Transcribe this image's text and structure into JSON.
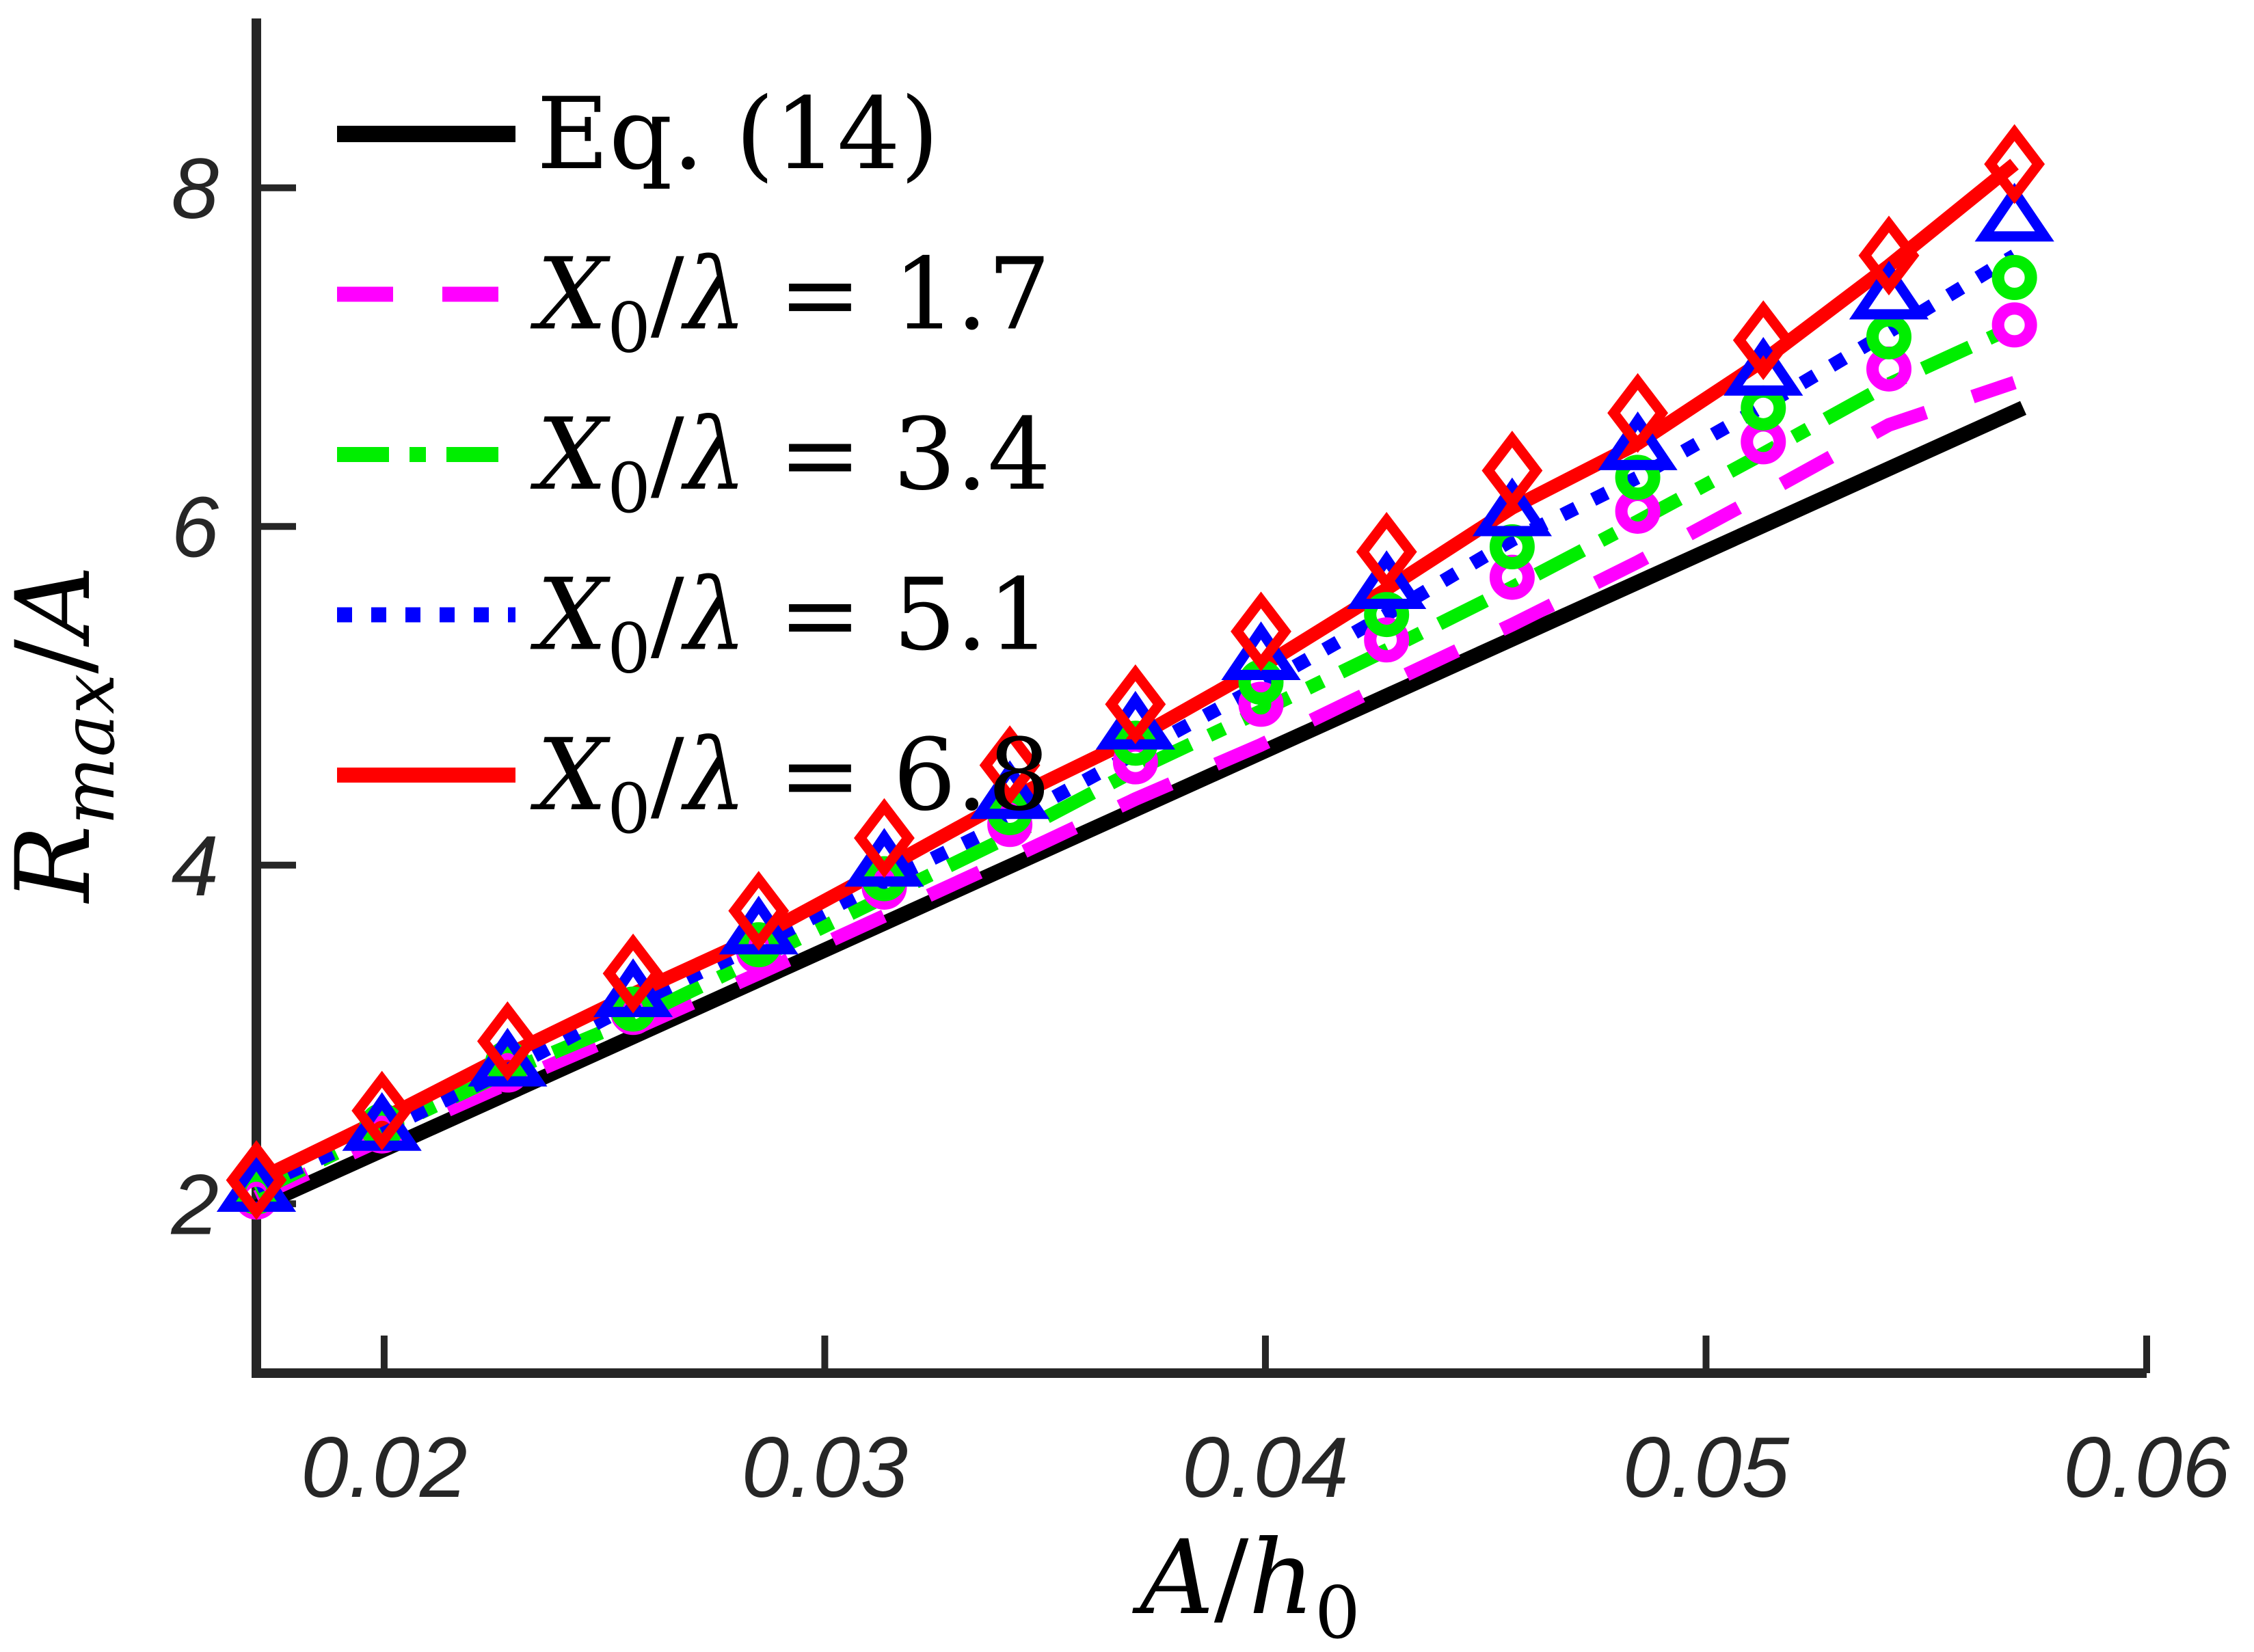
{
  "chart_data": {
    "type": "line",
    "title": "",
    "xlabel_parts": [
      {
        "t": "A",
        "i": 1
      },
      {
        "t": "/",
        "i": 0
      },
      {
        "t": "h",
        "i": 1
      },
      {
        "t": "0",
        "i": 0,
        "sub": 1
      }
    ],
    "ylabel_parts": [
      {
        "t": "R",
        "i": 1
      },
      {
        "t": "max",
        "i": 1,
        "sub": 1
      },
      {
        "t": "/",
        "i": 0
      },
      {
        "t": "A",
        "i": 1
      }
    ],
    "xlim": [
      0.0171,
      0.06
    ],
    "ylim": [
      1,
      9
    ],
    "xticks": [
      0.02,
      0.03,
      0.04,
      0.05,
      0.06
    ],
    "xtick_labels": [
      "0.02",
      "0.03",
      "0.04",
      "0.05",
      "0.06"
    ],
    "yticks": [
      2,
      4,
      6,
      8
    ],
    "ytick_labels": [
      "2",
      "4",
      "6",
      "8"
    ],
    "grid": false,
    "legend_position": "top-left",
    "x": [
      0.0171,
      0.01995,
      0.0228,
      0.02565,
      0.0285,
      0.03135,
      0.0342,
      0.03705,
      0.0399,
      0.04275,
      0.0456,
      0.04845,
      0.0513,
      0.05415,
      0.057
    ],
    "series": [
      {
        "id": "eq14",
        "label_parts": [
          {
            "t": "Eq. (14)",
            "i": 0
          }
        ],
        "label_text": "Eq. (14)",
        "color": "#000000",
        "linestyle": "solid",
        "linewidth": 22,
        "marker": "none",
        "line_x": [
          0.0171,
          0.0572
        ],
        "line_y": [
          1.98,
          6.7
        ]
      },
      {
        "id": "x0l17",
        "label_parts": [
          {
            "t": "X",
            "i": 1
          },
          {
            "t": "0",
            "i": 0,
            "sub": 1
          },
          {
            "t": "/",
            "i": 0
          },
          {
            "t": "λ",
            "i": 1
          },
          {
            "t": " = 1.7",
            "i": 0
          }
        ],
        "label_text": "X0/λ = 1.7",
        "color": "#ff00ff",
        "linestyle": "dashed",
        "linewidth": 20,
        "marker": "circle",
        "line_y": [
          2.04,
          2.38,
          2.71,
          3.03,
          3.36,
          3.7,
          4.04,
          4.39,
          4.71,
          5.07,
          5.42,
          5.79,
          6.19,
          6.6,
          6.85
        ],
        "marker_y": [
          2.04,
          2.43,
          2.79,
          3.13,
          3.49,
          3.87,
          4.24,
          4.61,
          4.95,
          5.33,
          5.7,
          6.09,
          6.5,
          6.93,
          7.19
        ]
      },
      {
        "id": "x0l34",
        "label_parts": [
          {
            "t": "X",
            "i": 1
          },
          {
            "t": "0",
            "i": 0,
            "sub": 1
          },
          {
            "t": "/",
            "i": 0
          },
          {
            "t": "λ",
            "i": 1
          },
          {
            "t": " = 3.4",
            "i": 0
          }
        ],
        "label_text": "X0/λ = 3.4",
        "color": "#00ee00",
        "linestyle": "dashdot",
        "linewidth": 20,
        "marker": "circle",
        "line_y": [
          2.07,
          2.43,
          2.78,
          3.09,
          3.45,
          3.81,
          4.17,
          4.56,
          4.91,
          5.27,
          5.64,
          6.03,
          6.43,
          6.84,
          7.18
        ],
        "marker_y": [
          2.07,
          2.46,
          2.83,
          3.15,
          3.53,
          3.92,
          4.31,
          4.72,
          5.08,
          5.48,
          5.88,
          6.29,
          6.7,
          7.12,
          7.47
        ]
      },
      {
        "id": "x0l51",
        "label_parts": [
          {
            "t": "X",
            "i": 1
          },
          {
            "t": "0",
            "i": 0,
            "sub": 1
          },
          {
            "t": "/",
            "i": 0
          },
          {
            "t": "λ",
            "i": 1
          },
          {
            "t": " = 5.1",
            "i": 0
          }
        ],
        "label_text": "X0/λ = 5.1",
        "color": "#0000ff",
        "linestyle": "dotted",
        "linewidth": 20,
        "marker": "triangle",
        "line_y": [
          2.1,
          2.43,
          2.79,
          3.18,
          3.53,
          3.9,
          4.26,
          4.66,
          5.06,
          5.48,
          5.92,
          6.29,
          6.71,
          7.15,
          7.6
        ],
        "marker_y": [
          2.1,
          2.46,
          2.84,
          3.25,
          3.62,
          4.02,
          4.42,
          4.83,
          5.24,
          5.66,
          6.09,
          6.48,
          6.92,
          7.37,
          7.83
        ]
      },
      {
        "id": "x0l68",
        "label_parts": [
          {
            "t": "X",
            "i": 1
          },
          {
            "t": "0",
            "i": 0,
            "sub": 1
          },
          {
            "t": "/",
            "i": 0
          },
          {
            "t": "λ",
            "i": 1
          },
          {
            "t": " = 6.8",
            "i": 0
          }
        ],
        "label_text": "X0/λ = 6.8",
        "color": "#ff0000",
        "linestyle": "solid",
        "linewidth": 20,
        "marker": "diamond",
        "line_y": [
          2.14,
          2.5,
          2.88,
          3.24,
          3.58,
          3.98,
          4.39,
          4.75,
          5.17,
          5.63,
          6.11,
          6.49,
          6.98,
          7.54,
          8.14
        ],
        "marker_y": [
          2.14,
          2.55,
          2.96,
          3.36,
          3.73,
          4.16,
          4.59,
          4.95,
          5.38,
          5.85,
          6.33,
          6.67,
          7.1,
          7.6,
          8.14
        ]
      }
    ],
    "axis_color": "#262626"
  }
}
